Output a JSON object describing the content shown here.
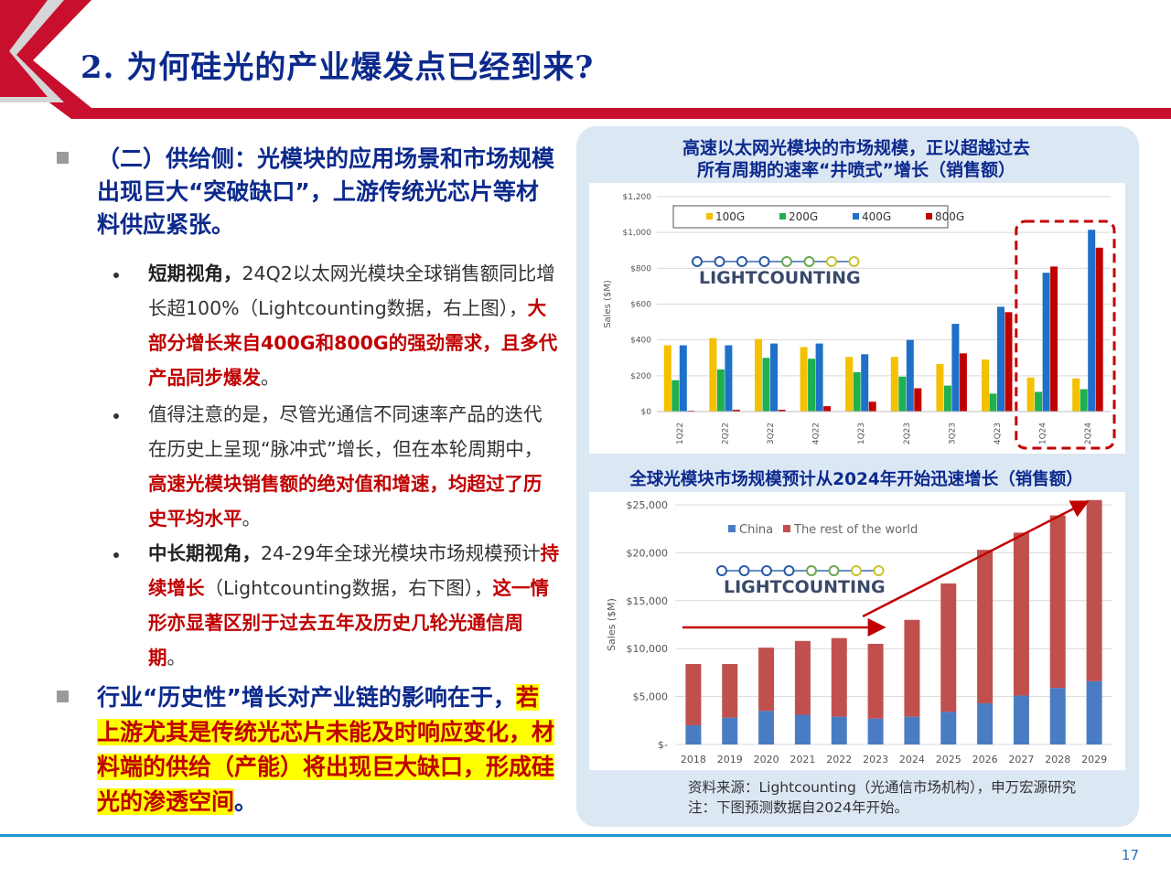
{
  "slide": {
    "title": "2. 为何硅光的产业爆发点已经到来?",
    "page_number": "17"
  },
  "left": {
    "point1": {
      "segments": [
        {
          "text": "（二）供给侧：光模块的应用场景和市场规模出现巨大“突破缺口”，上游传统光芯片等材料供应紧张。"
        }
      ]
    },
    "bullets": [
      {
        "segments": [
          {
            "text": "短期视角，",
            "style": "b"
          },
          {
            "text": "24Q2以太网光模块全球销售额同比增长超100%（Lightcounting数据，右上图），",
            "style": ""
          },
          {
            "text": "大部分增长来自400G和800G的强劲需求，且多代产品同步爆发",
            "style": "r"
          },
          {
            "text": "。",
            "style": ""
          }
        ]
      },
      {
        "segments": [
          {
            "text": "值得注意的是，尽管光通信不同速率产品的迭代在历史上呈现“脉冲式”增长，但在本轮周期中，",
            "style": ""
          },
          {
            "text": "高速光模块销售额的绝对值和增速，均超过了历史平均水平",
            "style": "r"
          },
          {
            "text": "。",
            "style": ""
          }
        ]
      },
      {
        "segments": [
          {
            "text": "中长期视角，",
            "style": "b"
          },
          {
            "text": "24-29年全球光模块市场规模预计",
            "style": ""
          },
          {
            "text": "持续增长",
            "style": "r"
          },
          {
            "text": "（Lightcounting数据，右下图），",
            "style": ""
          },
          {
            "text": "这一情形亦显著区别于过去五年及历史几轮光通信周期",
            "style": "r"
          },
          {
            "text": "。",
            "style": ""
          }
        ]
      }
    ],
    "point2": {
      "segments": [
        {
          "text": "行业“历史性”增长对产业链的影响在于，",
          "style": ""
        },
        {
          "text": "若上游尤其是传统光芯片未能及时响应变化，材料端的供给（产能）将出现巨大缺口，形成硅光的渗透空间",
          "style": "hl"
        },
        {
          "text": "。",
          "style": ""
        }
      ]
    }
  },
  "logo_text": "LIGHTCOUNTING",
  "source_note": {
    "line1": "资料来源：Lightcounting（光通信市场机构），申万宏源研究",
    "line2": "注：下图预测数据自2024年开始。"
  },
  "colors": {
    "header_red": "#c8102e",
    "title_blue": "#0c2a8c",
    "highlight_red": "#c00000",
    "c100G": "#f5c000",
    "c200G": "#1fb050",
    "c400G": "#1f70c8",
    "c800G": "#c00000",
    "china": "#4a7cc4",
    "rest": "#c0504d"
  },
  "chart_data": [
    {
      "type": "bar",
      "title": "高速以太网光模块的市场规模，正以超越过去所有周期的速率“井喷式”增长（销售额）",
      "ylabel": "Sales ($M)",
      "ylim": [
        0,
        1200
      ],
      "yticks": [
        0,
        200,
        400,
        600,
        800,
        1000,
        1200
      ],
      "ytick_labels": [
        "$0",
        "$200",
        "$400",
        "$600",
        "$800",
        "$1,000",
        "$1,200"
      ],
      "grid": true,
      "legend": "top-left",
      "categories": [
        "1Q22",
        "2Q22",
        "3Q22",
        "4Q22",
        "1Q23",
        "2Q23",
        "3Q23",
        "4Q23",
        "1Q24",
        "2Q24"
      ],
      "series": [
        {
          "name": "100G",
          "color": "#f5c000",
          "values": [
            370,
            410,
            405,
            360,
            305,
            305,
            265,
            290,
            190,
            185
          ]
        },
        {
          "name": "200G",
          "color": "#1fb050",
          "values": [
            175,
            235,
            300,
            295,
            220,
            195,
            145,
            100,
            110,
            125
          ]
        },
        {
          "name": "400G",
          "color": "#1f70c8",
          "values": [
            370,
            370,
            380,
            380,
            320,
            400,
            490,
            585,
            775,
            1015
          ]
        },
        {
          "name": "800G",
          "color": "#c00000",
          "values": [
            5,
            10,
            10,
            30,
            55,
            130,
            325,
            555,
            810,
            915
          ]
        }
      ],
      "highlight": [
        "1Q24",
        "2Q24"
      ]
    },
    {
      "type": "bar",
      "stacked": true,
      "title": "全球光模块市场规模预计从2024年开始迅速增长（销售额）",
      "ylabel": "Sales ($M)",
      "ylim": [
        0,
        25000
      ],
      "yticks": [
        0,
        5000,
        10000,
        15000,
        20000,
        25000
      ],
      "ytick_labels": [
        "$-",
        "$5,000",
        "$10,000",
        "$15,000",
        "$20,000",
        "$25,000"
      ],
      "grid": true,
      "legend": "top-left",
      "categories": [
        "2018",
        "2019",
        "2020",
        "2021",
        "2022",
        "2023",
        "2024",
        "2025",
        "2026",
        "2027",
        "2028",
        "2029"
      ],
      "series": [
        {
          "name": "China",
          "color": "#4a7cc4",
          "values": [
            2000,
            2800,
            3500,
            3100,
            2900,
            2700,
            2900,
            3400,
            4300,
            5100,
            5900,
            6600
          ]
        },
        {
          "name": "The rest of the world",
          "color": "#c0504d",
          "values": [
            6400,
            5600,
            6600,
            7700,
            8200,
            7800,
            10100,
            13400,
            16000,
            17000,
            18000,
            18900
          ]
        }
      ]
    }
  ]
}
